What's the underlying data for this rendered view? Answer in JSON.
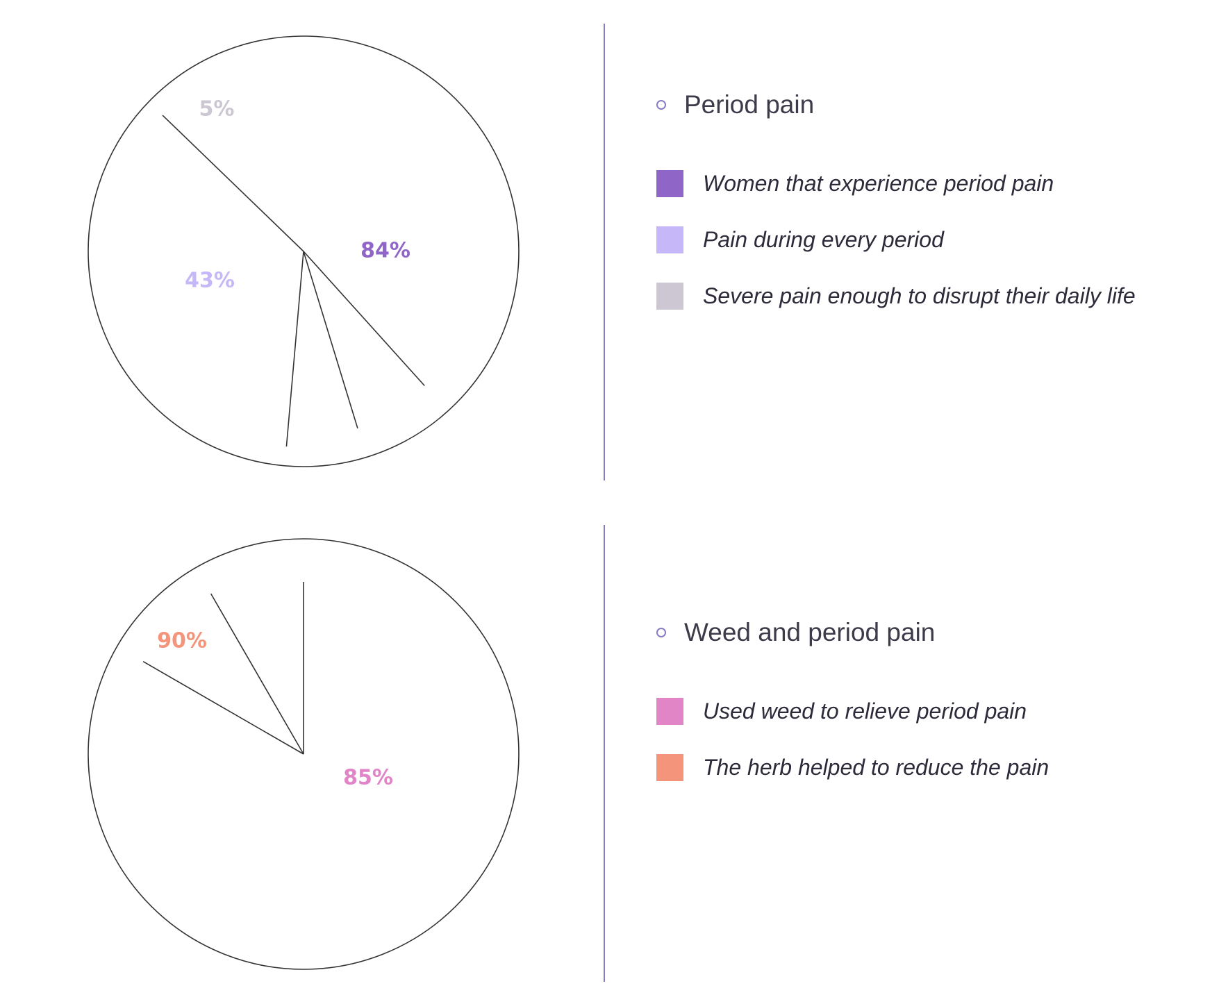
{
  "chart_data": [
    {
      "type": "pie",
      "title": "Period pain",
      "slices": [
        {
          "label": "Women that experience period pain",
          "value": 84,
          "display": "84%",
          "color": "#8f66c8"
        },
        {
          "label": "Pain during every period",
          "value": 43,
          "display": "43%",
          "color": "#c6b8f8"
        },
        {
          "label": "Severe pain enough to disrupt their daily life",
          "value": 5,
          "display": "5%",
          "color": "#cdc7d3"
        }
      ]
    },
    {
      "type": "pie",
      "title": "Weed and period pain",
      "slices": [
        {
          "label": "Used weed to relieve period pain",
          "value": 85,
          "display": "85%",
          "color": "#e185c7"
        },
        {
          "label": "The herb helped  to reduce the pain",
          "value": 90,
          "display": "90%",
          "color": "#f4957b"
        }
      ]
    }
  ],
  "colors": {
    "divider": "#8a7cc2",
    "outline": "#333333"
  }
}
